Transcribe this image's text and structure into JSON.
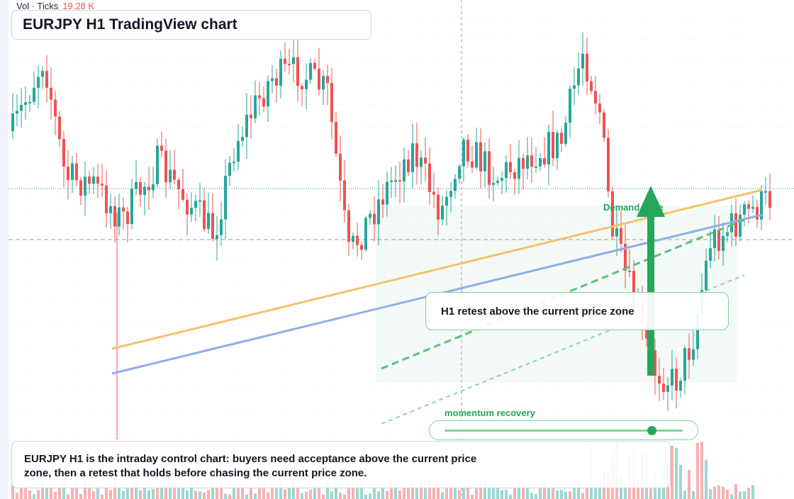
{
  "header": {
    "title": "EURJPY H1 TradingView chart",
    "volume_label": "Vol · Ticks",
    "volume_value": "19.28 K"
  },
  "annotations": {
    "demand_zone_label": "Demand zone",
    "callout": "H1 retest above the current price zone",
    "momentum_label": "momentum recovery",
    "momentum_level": 0.87
  },
  "note": {
    "line1": "EURJPY H1 is the intraday control chart: buyers need acceptance above the current price",
    "line2": "zone, then a retest that holds before chasing the current price zone."
  },
  "colors": {
    "up": "#26a69a",
    "down": "#ef5350",
    "accent_green": "#26a65b",
    "trend_orange": "#f5c26b",
    "trend_blue": "#8eaee9"
  },
  "chart_data": {
    "type": "candlestick",
    "symbol": "EURJPY",
    "timeframe": "H1",
    "title": "EURJPY H1 TradingView chart",
    "x_axis_labels": [],
    "y_axis_labels": [],
    "volume": {
      "label": "Vol · Ticks",
      "last_value": "19.28 K"
    },
    "demand_zone": {
      "label": "Demand zone"
    },
    "callout": "H1 retest above the current price zone",
    "momentum": {
      "label": "momentum recovery",
      "level": 0.87
    },
    "trendlines": [
      "orange rising trendline",
      "blue rising trendline",
      "green dashed channel"
    ],
    "legend": "none",
    "grid": true
  }
}
